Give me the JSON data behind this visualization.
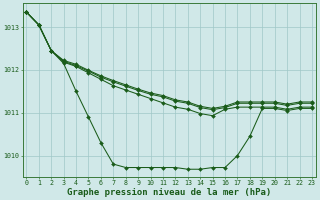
{
  "x": [
    0,
    1,
    2,
    3,
    4,
    5,
    6,
    7,
    8,
    9,
    10,
    11,
    12,
    13,
    14,
    15,
    16,
    17,
    18,
    19,
    20,
    21,
    22,
    23
  ],
  "line1": [
    1013.35,
    1013.05,
    1012.45,
    1012.15,
    1011.5,
    1010.9,
    1010.3,
    1009.8,
    1009.72,
    1009.72,
    1009.72,
    1009.72,
    1009.72,
    1009.68,
    1009.68,
    1009.72,
    1009.72,
    1010.0,
    1010.45,
    1011.1,
    1011.1,
    1011.05,
    1011.1,
    1011.1
  ],
  "line2": [
    1013.35,
    1013.05,
    1012.45,
    1012.18,
    1012.08,
    1011.93,
    1011.78,
    1011.63,
    1011.53,
    1011.43,
    1011.33,
    1011.23,
    1011.13,
    1011.08,
    1010.98,
    1010.93,
    1011.08,
    1011.13,
    1011.13,
    1011.13,
    1011.13,
    1011.08,
    1011.13,
    1011.13
  ],
  "line3": [
    1013.35,
    1013.05,
    1012.45,
    1012.2,
    1012.1,
    1011.97,
    1011.83,
    1011.72,
    1011.62,
    1011.52,
    1011.43,
    1011.37,
    1011.27,
    1011.22,
    1011.12,
    1011.07,
    1011.12,
    1011.22,
    1011.22,
    1011.22,
    1011.22,
    1011.17,
    1011.22,
    1011.22
  ],
  "line4": [
    1013.35,
    1013.05,
    1012.45,
    1012.22,
    1012.13,
    1011.99,
    1011.86,
    1011.75,
    1011.65,
    1011.55,
    1011.46,
    1011.4,
    1011.3,
    1011.25,
    1011.15,
    1011.1,
    1011.15,
    1011.25,
    1011.25,
    1011.25,
    1011.25,
    1011.2,
    1011.25,
    1011.25
  ],
  "bg_color": "#d0e8e8",
  "grid_color": "#a0c8c8",
  "line_color": "#1a5c1a",
  "xlabel": "Graphe pression niveau de la mer (hPa)",
  "ylim": [
    1009.5,
    1013.55
  ],
  "yticks": [
    1010,
    1011,
    1012,
    1013
  ],
  "xticks": [
    0,
    1,
    2,
    3,
    4,
    5,
    6,
    7,
    8,
    9,
    10,
    11,
    12,
    13,
    14,
    15,
    16,
    17,
    18,
    19,
    20,
    21,
    22,
    23
  ],
  "tick_fontsize": 4.8,
  "xlabel_fontsize": 6.5,
  "border_color": "#3a7a3a",
  "marker_size": 2.0,
  "line_width": 0.75
}
